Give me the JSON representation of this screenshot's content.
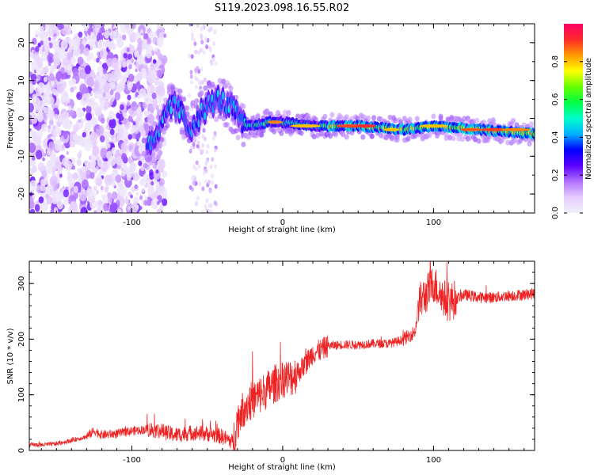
{
  "title": "S119.2023.098.16.55.R02",
  "chart_data": [
    {
      "type": "heatmap",
      "xlabel": "Height of straight line (km)",
      "ylabel": "Frequency (Hz)",
      "xlim": [
        -168,
        167
      ],
      "ylim": [
        -25,
        25
      ],
      "xticks": [
        -100,
        0,
        100
      ],
      "yticks": [
        -20,
        -10,
        0,
        10,
        20
      ],
      "colorbar": {
        "label": "Normalized spectral amplitude",
        "range": [
          0,
          1
        ],
        "ticks": [
          "0.0",
          "0.2",
          "0.4",
          "0.6",
          "0.8"
        ],
        "colormap": [
          "#f0f0f8",
          "#e6ccff",
          "#b070ff",
          "#5a00ff",
          "#0000ff",
          "#00b0ff",
          "#00ffcc",
          "#00ff44",
          "#66ff00",
          "#ffff00",
          "#ff9900",
          "#ff2a2a",
          "#ff0066"
        ]
      },
      "ridge_frequency_hz": [
        {
          "x": -85,
          "y": -7
        },
        {
          "x": -80,
          "y": -2
        },
        {
          "x": -75,
          "y": 4
        },
        {
          "x": -68,
          "y": 2
        },
        {
          "x": -62,
          "y": -3
        },
        {
          "x": -55,
          "y": 1
        },
        {
          "x": -48,
          "y": 4
        },
        {
          "x": -42,
          "y": 5
        },
        {
          "x": -35,
          "y": 3
        },
        {
          "x": -30,
          "y": 1
        },
        {
          "x": -27,
          "y": -2
        },
        {
          "x": -20,
          "y": -2
        },
        {
          "x": -10,
          "y": -1
        },
        {
          "x": 0,
          "y": -1
        },
        {
          "x": 20,
          "y": -2
        },
        {
          "x": 50,
          "y": -2
        },
        {
          "x": 80,
          "y": -3
        },
        {
          "x": 100,
          "y": -2
        },
        {
          "x": 130,
          "y": -3
        },
        {
          "x": 167,
          "y": -4
        }
      ]
    },
    {
      "type": "line",
      "xlabel": "Height of straight line (km)",
      "ylabel": "SNR (10 * v/v)",
      "xlim": [
        -168,
        167
      ],
      "ylim": [
        0,
        340
      ],
      "xticks": [
        -100,
        0,
        100
      ],
      "yticks": [
        0,
        100,
        200,
        300
      ],
      "line_color": "#ee2222",
      "series": [
        {
          "x": [
            -168,
            -160,
            -150,
            -140,
            -130,
            -125,
            -120,
            -110,
            -100,
            -90,
            -80,
            -75,
            -70,
            -60,
            -50,
            -40,
            -33,
            -30,
            -25,
            -20,
            -15,
            -10,
            -5,
            0,
            5,
            10,
            15,
            20,
            25,
            30,
            40,
            50,
            60,
            70,
            75,
            80,
            85,
            88,
            90,
            95,
            100,
            105,
            110,
            120,
            130,
            140,
            150,
            160,
            167
          ],
          "y": [
            10,
            10,
            12,
            18,
            25,
            35,
            28,
            30,
            35,
            38,
            35,
            30,
            28,
            32,
            30,
            25,
            15,
            55,
            80,
            90,
            100,
            110,
            120,
            130,
            130,
            140,
            155,
            175,
            180,
            188,
            190,
            190,
            192,
            192,
            195,
            200,
            208,
            215,
            265,
            280,
            300,
            280,
            265,
            280,
            275,
            275,
            278,
            280,
            282
          ]
        }
      ]
    }
  ]
}
